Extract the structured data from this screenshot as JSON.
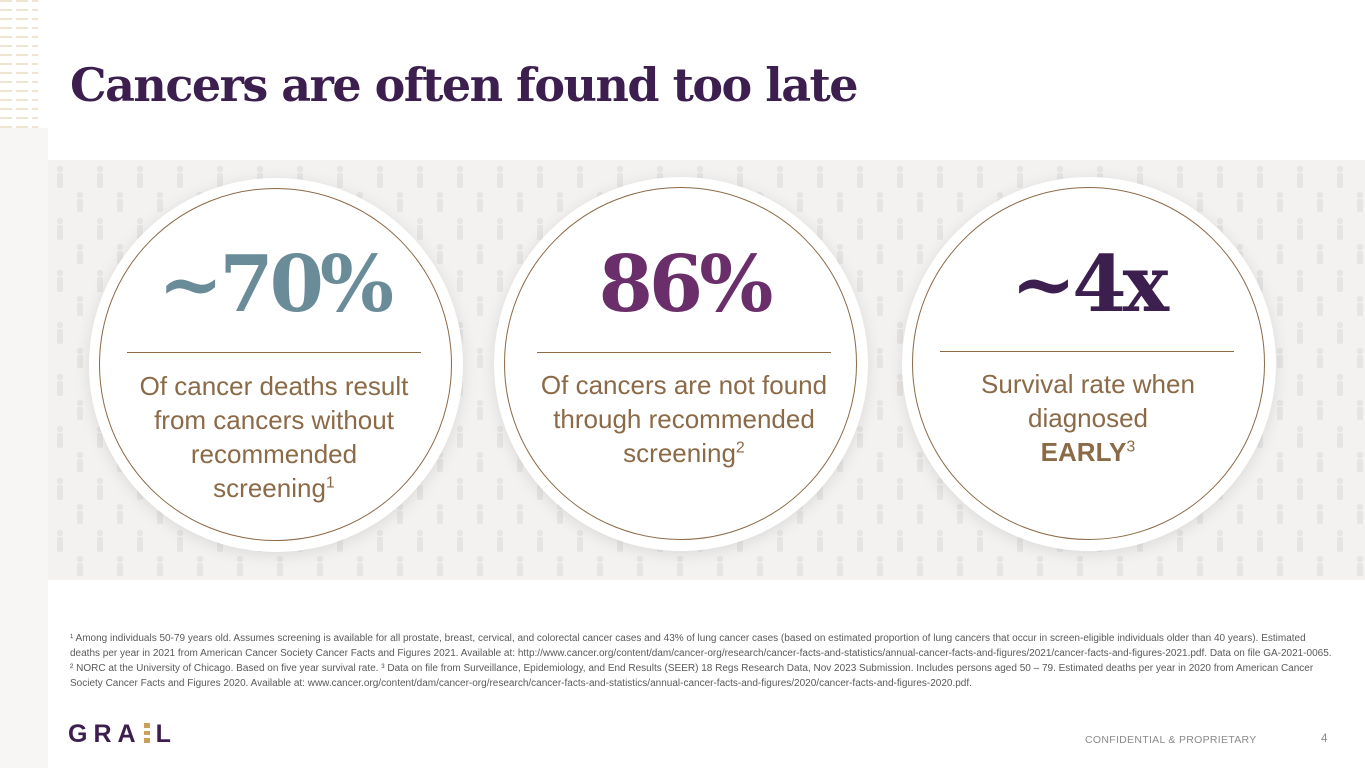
{
  "slide": {
    "title": "Cancers are often found too late",
    "stats": [
      {
        "value": "~70%",
        "color": "#6a8c98",
        "lines": [
          "Of cancer deaths result",
          "from cancers without",
          "recommended"
        ],
        "last": "screening",
        "sup": "1"
      },
      {
        "value": "86%",
        "color": "#6a2e6a",
        "lines": [
          "Of cancers are not found",
          "through recommended"
        ],
        "last": "screening",
        "sup": "2"
      },
      {
        "value": "~4x",
        "color": "#3d1f4f",
        "lines": [
          "Survival rate when",
          "diagnosed"
        ],
        "last": "EARLY",
        "sup": "3"
      }
    ],
    "footnote": "¹ Among individuals 50-79 years old. Assumes screening is available for all prostate, breast, cervical, and colorectal cancer cases and 43% of lung cancer cases (based on estimated proportion of lung cancers that occur in screen-eligible individuals older than 40 years). Estimated deaths per year in 2021 from American Cancer Society Cancer Facts and Figures 2021. Available at: http://www.cancer.org/content/dam/cancer-org/research/cancer-facts-and-statistics/annual-cancer-facts-and-figures/2021/cancer-facts-and-figures-2021.pdf. Data on file GA-2021-0065. ² NORC at the University of Chicago. Based on five year survival rate. ³ Data on file from Surveillance, Epidemiology, and End Results (SEER) 18 Regs Research Data, Nov 2023 Submission. Includes persons aged 50 – 79. Estimated deaths per year in 2020 from American Cancer Society Cancer Facts and Figures 2020. Available at: www.cancer.org/content/dam/cancer-org/research/cancer-facts-and-statistics/annual-cancer-facts-and-figures/2020/cancer-facts-and-figures-2020.pdf.",
    "logo": {
      "left": "GRA",
      "right": "L"
    },
    "confidential": "CONFIDENTIAL & PROPRIETARY",
    "page_number": "4"
  }
}
